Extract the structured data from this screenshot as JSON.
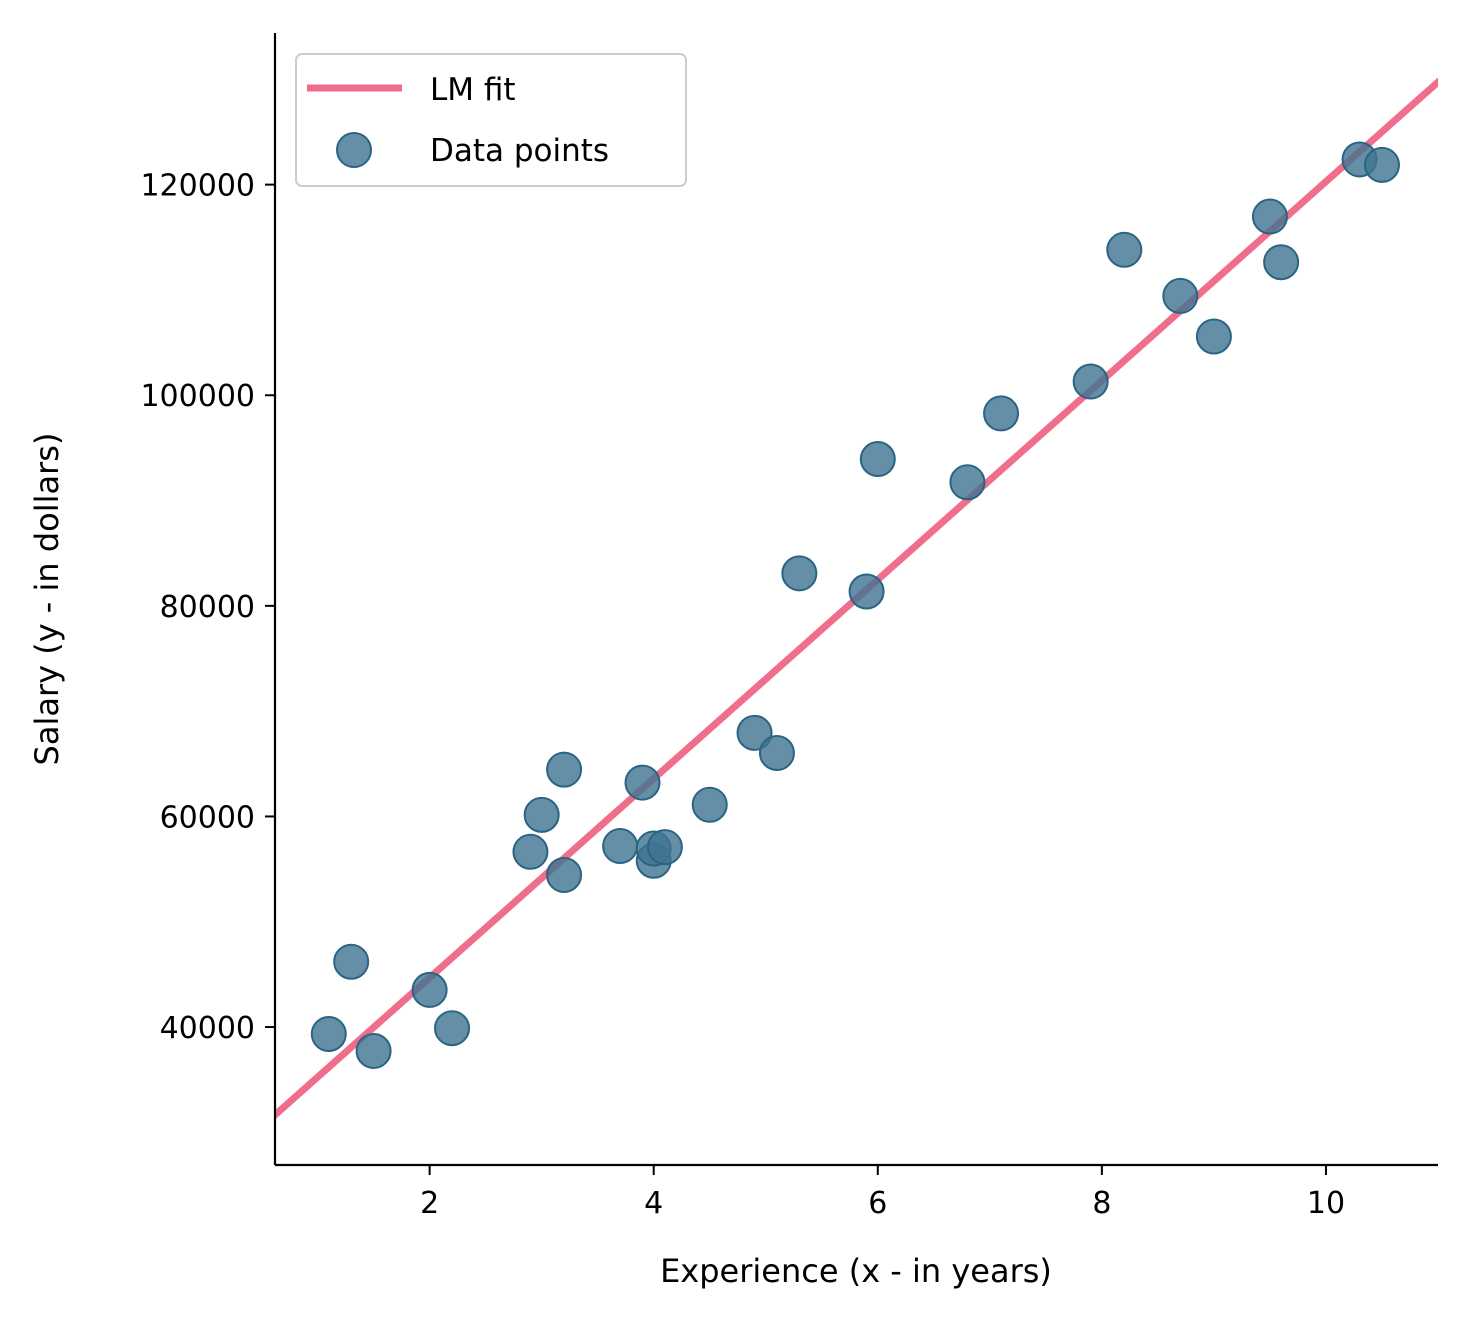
{
  "chart_data": {
    "type": "scatter",
    "xlabel": "Experience (x - in years)",
    "ylabel": "Salary (y - in dollars)",
    "xlim": [
      0.62,
      11.0
    ],
    "ylim": [
      26900,
      134400
    ],
    "x_ticks": [
      2,
      4,
      6,
      8,
      10
    ],
    "y_ticks": [
      40000,
      60000,
      80000,
      100000,
      120000
    ],
    "grid": false,
    "legend": {
      "position": "upper-left",
      "entries": [
        "LM fit",
        "Data points"
      ]
    },
    "colors": {
      "fit_line": "#f06e8b",
      "points": "#3e7391",
      "point_edge": "#2b6482"
    },
    "series": [
      {
        "name": "Data points",
        "type": "scatter",
        "x": [
          1.1,
          1.3,
          1.5,
          2.0,
          2.2,
          2.9,
          3.0,
          3.2,
          3.2,
          3.7,
          3.9,
          4.0,
          4.0,
          4.1,
          4.5,
          4.9,
          5.1,
          5.3,
          5.9,
          6.0,
          6.8,
          7.1,
          7.9,
          8.2,
          8.7,
          9.0,
          9.5,
          9.6,
          10.3,
          10.5
        ],
        "y": [
          39343,
          46205,
          37731,
          43525,
          39891,
          56642,
          60150,
          54445,
          64445,
          57189,
          63218,
          55794,
          56957,
          57081,
          61111,
          67938,
          66029,
          83088,
          81363,
          93940,
          91738,
          98273,
          101302,
          113812,
          109431,
          105582,
          116969,
          112635,
          122391,
          121872
        ]
      },
      {
        "name": "LM fit",
        "type": "line",
        "slope": 9450,
        "intercept": 25792
      }
    ]
  }
}
